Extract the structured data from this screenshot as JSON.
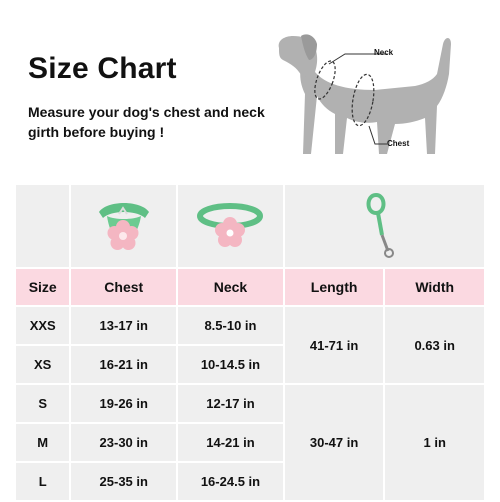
{
  "header": {
    "title": "Size Chart",
    "subtitle": "Measure your dog's chest and neck girth before buying !"
  },
  "diagram": {
    "neck_label": "Neck",
    "chest_label": "Chest"
  },
  "colors": {
    "header_bg": "#fbd9e1",
    "cell_bg": "#efefef",
    "dog_fill": "#b1b1b1",
    "product_green": "#5fbf85",
    "flower_pink": "#f4b6c2"
  },
  "table": {
    "headers": [
      "Size",
      "Chest",
      "Neck",
      "Length",
      "Width"
    ],
    "rows": [
      {
        "size": "XXS",
        "chest": "13-17 in",
        "neck": "8.5-10 in"
      },
      {
        "size": "XS",
        "chest": "16-21 in",
        "neck": "10-14.5 in"
      },
      {
        "size": "S",
        "chest": "19-26 in",
        "neck": "12-17 in"
      },
      {
        "size": "M",
        "chest": "23-30 in",
        "neck": "14-21 in"
      },
      {
        "size": "L",
        "chest": "25-35 in",
        "neck": "16-24.5 in"
      }
    ],
    "leash_groups": [
      {
        "length": "41-71 in",
        "width": "0.63 in"
      },
      {
        "length": "30-47 in",
        "width": "1 in"
      }
    ]
  }
}
